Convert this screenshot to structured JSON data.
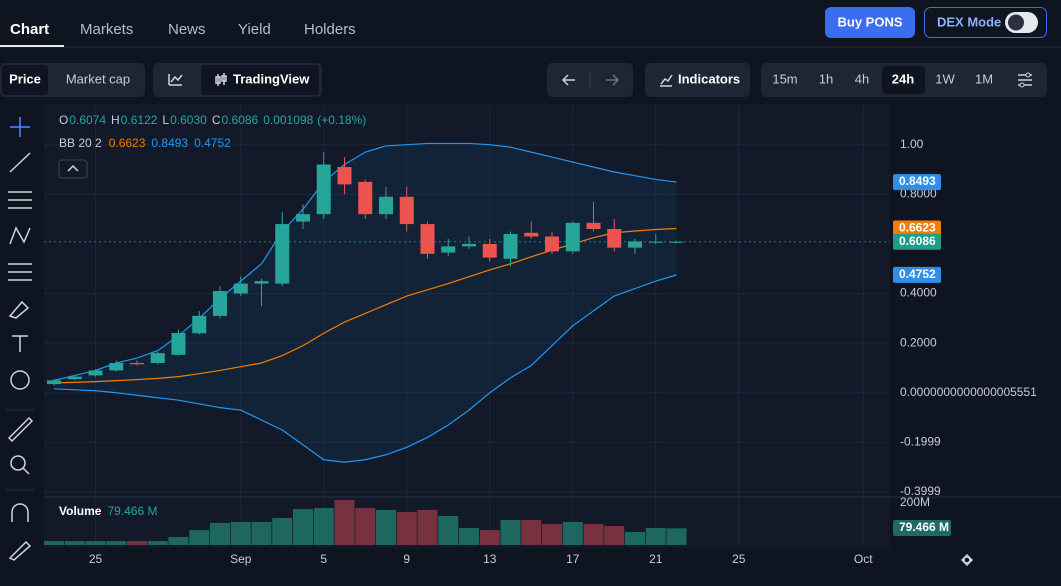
{
  "nav": {
    "tabs": [
      "Chart",
      "Markets",
      "News",
      "Yield",
      "Holders"
    ],
    "buy": "Buy PONS",
    "dex": "DEX Mode"
  },
  "toolbar": {
    "price": "Price",
    "market_cap": "Market cap",
    "tradingview": "TradingView",
    "indicators": "Indicators",
    "intervals": [
      "15m",
      "1h",
      "4h",
      "24h",
      "1W",
      "1M"
    ]
  },
  "chart": {
    "type": "candlestick",
    "up_color": "#26a69a",
    "down_color": "#ef5350",
    "candles": [
      [
        0.035,
        0.055,
        0.03,
        0.05
      ],
      [
        0.055,
        0.07,
        0.05,
        0.065
      ],
      [
        0.07,
        0.095,
        0.065,
        0.09
      ],
      [
        0.09,
        0.13,
        0.085,
        0.12
      ],
      [
        0.12,
        0.13,
        0.11,
        0.115
      ],
      [
        0.12,
        0.165,
        0.115,
        0.16
      ],
      [
        0.153,
        0.255,
        0.15,
        0.241
      ],
      [
        0.24,
        0.33,
        0.235,
        0.31
      ],
      [
        0.31,
        0.43,
        0.3,
        0.41
      ],
      [
        0.4,
        0.47,
        0.39,
        0.44
      ],
      [
        0.44,
        0.46,
        0.35,
        0.45
      ],
      [
        0.44,
        0.73,
        0.43,
        0.68
      ],
      [
        0.69,
        0.76,
        0.66,
        0.72
      ],
      [
        0.72,
        0.97,
        0.7,
        0.92
      ],
      [
        0.91,
        0.95,
        0.8,
        0.84
      ],
      [
        0.85,
        0.86,
        0.7,
        0.72
      ],
      [
        0.72,
        0.83,
        0.7,
        0.79
      ],
      [
        0.79,
        0.83,
        0.65,
        0.68
      ],
      [
        0.68,
        0.69,
        0.54,
        0.56
      ],
      [
        0.565,
        0.62,
        0.55,
        0.59
      ],
      [
        0.59,
        0.63,
        0.58,
        0.6
      ],
      [
        0.6,
        0.62,
        0.53,
        0.545
      ],
      [
        0.54,
        0.65,
        0.51,
        0.64
      ],
      [
        0.645,
        0.69,
        0.62,
        0.63
      ],
      [
        0.63,
        0.65,
        0.56,
        0.57
      ],
      [
        0.57,
        0.69,
        0.56,
        0.685
      ],
      [
        0.685,
        0.77,
        0.65,
        0.66
      ],
      [
        0.66,
        0.7,
        0.57,
        0.585
      ],
      [
        0.585,
        0.62,
        0.56,
        0.61
      ],
      [
        0.607,
        0.64,
        0.6,
        0.609
      ],
      [
        0.6074,
        0.6122,
        0.603,
        0.6086
      ]
    ],
    "readout_letters": [
      "O",
      "H",
      "L",
      "C"
    ],
    "readout_labels": [
      "0.6074",
      "0.6122",
      "0.6030",
      "0.6086"
    ],
    "change": 0.001098,
    "change_label": "(+0.18%)",
    "bb": {
      "label": "BB 20 2",
      "upper_color": "#2196f3",
      "middle_color": "#f57c00",
      "lower_color": "#2196f3",
      "upper": [
        0.05,
        0.07,
        0.09,
        0.12,
        0.14,
        0.17,
        0.23,
        0.3,
        0.38,
        0.45,
        0.52,
        0.65,
        0.74,
        0.85,
        0.92,
        0.97,
        0.995,
        1.0,
        1.005,
        1.005,
        1.005,
        1.0,
        0.99,
        0.97,
        0.95,
        0.93,
        0.91,
        0.89,
        0.875,
        0.86,
        0.8493
      ],
      "middle": [
        0.04,
        0.042,
        0.045,
        0.049,
        0.053,
        0.058,
        0.065,
        0.077,
        0.09,
        0.105,
        0.12,
        0.15,
        0.19,
        0.24,
        0.285,
        0.32,
        0.355,
        0.39,
        0.415,
        0.44,
        0.468,
        0.495,
        0.52,
        0.548,
        0.575,
        0.6,
        0.625,
        0.645,
        0.652,
        0.658,
        0.6623
      ],
      "lower": [
        0.016,
        0.012,
        0.008,
        0.0,
        -0.01,
        -0.02,
        -0.03,
        -0.045,
        -0.06,
        -0.07,
        -0.11,
        -0.15,
        -0.21,
        -0.27,
        -0.28,
        -0.27,
        -0.25,
        -0.22,
        -0.18,
        -0.13,
        -0.07,
        0.0,
        0.06,
        0.11,
        0.19,
        0.27,
        0.33,
        0.39,
        0.42,
        0.45,
        0.4752
      ]
    },
    "ylim": [
      -0.4,
      1.16
    ],
    "yticks": [
      {
        "value": 1,
        "label": "1.00"
      },
      {
        "value": 0.8,
        "label": "0.8000"
      },
      {
        "value": 0.4,
        "label": "0.4000"
      },
      {
        "value": 0.2,
        "label": "0.2000"
      },
      {
        "value": 5.551e-16,
        "label": "0.0000000000000005551"
      },
      {
        "value": -0.1999,
        "label": "-0.1999"
      },
      {
        "value": -0.3999,
        "label": "-0.3999"
      }
    ],
    "xticks": [
      {
        "value": 2,
        "label": "25"
      },
      {
        "value": 9,
        "label": "Sep"
      },
      {
        "value": 13,
        "label": "5"
      },
      {
        "value": 17,
        "label": "9"
      },
      {
        "value": 21,
        "label": "13"
      },
      {
        "value": 25,
        "label": "17"
      },
      {
        "value": 29,
        "label": "21"
      },
      {
        "value": 33,
        "label": "25"
      },
      {
        "value": 39,
        "label": "Oct"
      }
    ],
    "volume": {
      "label": "Volume",
      "value_label": "79.466 M",
      "vlim": [
        0,
        200
      ],
      "ticks": [
        {
          "value": 200,
          "label": "200M"
        }
      ],
      "values": [
        19,
        19,
        19,
        19,
        19,
        19,
        38,
        71,
        105,
        110,
        110,
        129,
        171,
        176,
        214,
        176,
        167,
        157,
        167,
        138,
        81,
        71,
        119,
        119,
        100,
        110,
        100,
        90,
        62,
        81,
        79.466
      ]
    }
  }
}
